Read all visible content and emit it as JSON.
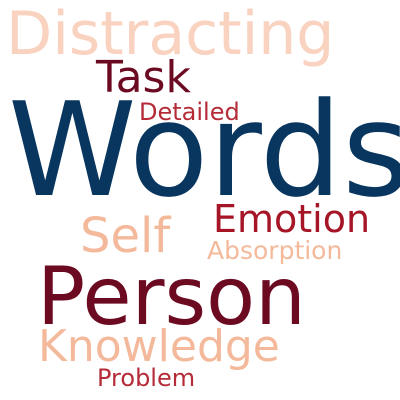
{
  "words": {
    "distracting": {
      "text": "Distracting",
      "color": "#f9d2c0"
    },
    "task": {
      "text": "Task",
      "color": "#6c0a22"
    },
    "detailed": {
      "text": "Detailed",
      "color": "#b52b38"
    },
    "words": {
      "text": "Words",
      "color": "#08365f"
    },
    "self": {
      "text": "Self",
      "color": "#f4b99b"
    },
    "emotion": {
      "text": "Emotion",
      "color": "#a51526"
    },
    "absorption": {
      "text": "Absorption",
      "color": "#f4b99b"
    },
    "person": {
      "text": "Person",
      "color": "#6c0a22"
    },
    "knowledge": {
      "text": "Knowledge",
      "color": "#f4b99b"
    },
    "problem": {
      "text": "Problem",
      "color": "#b52b38"
    }
  }
}
